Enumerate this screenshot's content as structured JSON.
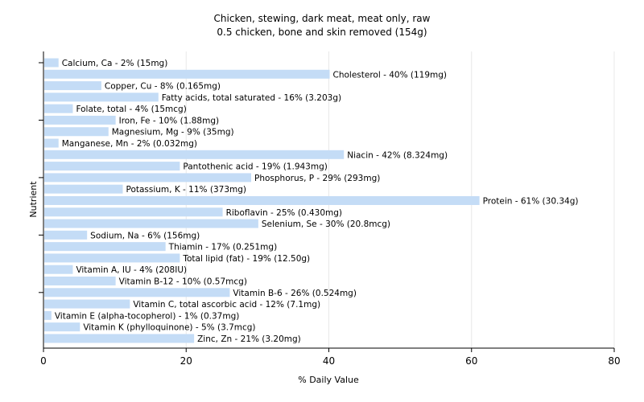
{
  "chart_data": {
    "type": "bar",
    "orientation": "horizontal",
    "title": "Chicken, stewing, dark meat, meat only, raw",
    "subtitle": "0.5 chicken, bone and skin removed (154g)",
    "xlabel": "% Daily Value",
    "ylabel": "Nutrient",
    "xlim": [
      0,
      80
    ],
    "x_ticks": [
      "0",
      "20",
      "40",
      "60",
      "80"
    ],
    "grid": "vertical",
    "bar_color": "#c4dcf6",
    "categories": [
      "Calcium, Ca",
      "Cholesterol",
      "Copper, Cu",
      "Fatty acids, total saturated",
      "Folate, total",
      "Iron, Fe",
      "Magnesium, Mg",
      "Manganese, Mn",
      "Niacin",
      "Pantothenic acid",
      "Phosphorus, P",
      "Potassium, K",
      "Protein",
      "Riboflavin",
      "Selenium, Se",
      "Sodium, Na",
      "Thiamin",
      "Total lipid (fat)",
      "Vitamin A, IU",
      "Vitamin B-12",
      "Vitamin B-6",
      "Vitamin C, total ascorbic acid",
      "Vitamin E (alpha-tocopherol)",
      "Vitamin K (phylloquinone)",
      "Zinc, Zn"
    ],
    "values": [
      2,
      40,
      8,
      16,
      4,
      10,
      9,
      2,
      42,
      19,
      29,
      11,
      61,
      25,
      30,
      6,
      17,
      19,
      4,
      10,
      26,
      12,
      1,
      5,
      21
    ],
    "labels": [
      "Calcium, Ca - 2% (15mg)",
      "Cholesterol - 40% (119mg)",
      "Copper, Cu - 8% (0.165mg)",
      "Fatty acids, total saturated - 16% (3.203g)",
      "Folate, total - 4% (15mcg)",
      "Iron, Fe - 10% (1.88mg)",
      "Magnesium, Mg - 9% (35mg)",
      "Manganese, Mn - 2% (0.032mg)",
      "Niacin - 42% (8.324mg)",
      "Pantothenic acid - 19% (1.943mg)",
      "Phosphorus, P - 29% (293mg)",
      "Potassium, K - 11% (373mg)",
      "Protein - 61% (30.34g)",
      "Riboflavin - 25% (0.430mg)",
      "Selenium, Se - 30% (20.8mcg)",
      "Sodium, Na - 6% (156mg)",
      "Thiamin - 17% (0.251mg)",
      "Total lipid (fat) - 19% (12.50g)",
      "Vitamin A, IU - 4% (208IU)",
      "Vitamin B-12 - 10% (0.57mcg)",
      "Vitamin B-6 - 26% (0.524mg)",
      "Vitamin C, total ascorbic acid - 12% (7.1mg)",
      "Vitamin E (alpha-tocopherol) - 1% (0.37mg)",
      "Vitamin K (phylloquinone) - 5% (3.7mcg)",
      "Zinc, Zn - 21% (3.20mg)"
    ]
  }
}
